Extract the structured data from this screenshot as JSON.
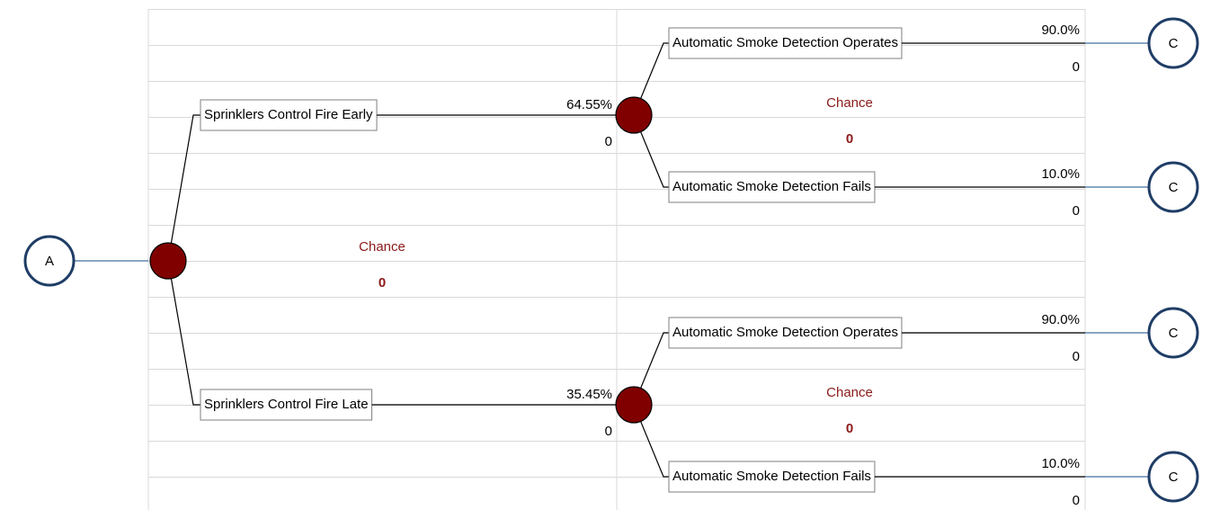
{
  "start": {
    "label": "A"
  },
  "root": {
    "node_type": "Chance",
    "value": "0",
    "branches": [
      {
        "label": "Sprinklers Control Fire Early",
        "probability": "64.55%",
        "value": "0",
        "node": {
          "node_type": "Chance",
          "value": "0",
          "branches": [
            {
              "label": "Automatic Smoke Detection Operates",
              "probability": "90.0%",
              "value": "0",
              "end": "C"
            },
            {
              "label": "Automatic Smoke Detection Fails",
              "probability": "10.0%",
              "value": "0",
              "end": "C"
            }
          ]
        }
      },
      {
        "label": "Sprinklers Control Fire Late",
        "probability": "35.45%",
        "value": "0",
        "node": {
          "node_type": "Chance",
          "value": "0",
          "branches": [
            {
              "label": "Automatic Smoke Detection Operates",
              "probability": "90.0%",
              "value": "0",
              "end": "C"
            },
            {
              "label": "Automatic Smoke Detection Fails",
              "probability": "10.0%",
              "value": "0",
              "end": "C"
            }
          ]
        }
      }
    ]
  }
}
